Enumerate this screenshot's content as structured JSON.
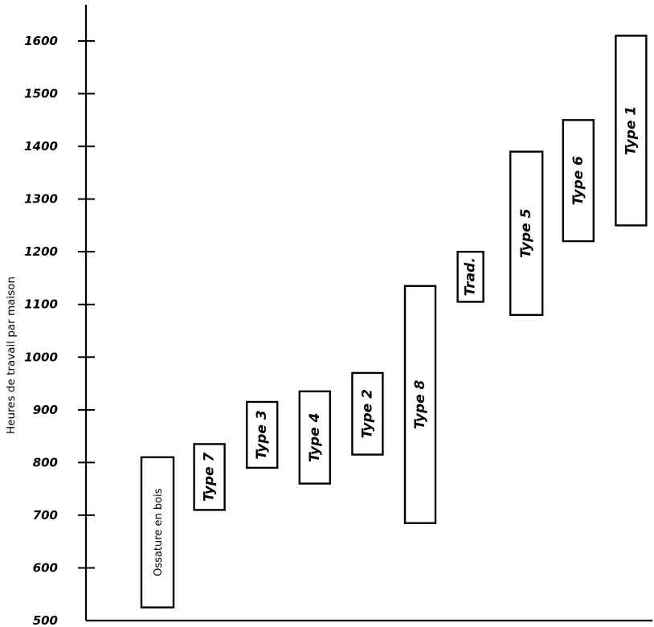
{
  "chart_data": {
    "type": "bar",
    "ylabel": "Heures de travail par maison",
    "ylim": [
      500,
      1600
    ],
    "yticks": [
      500,
      600,
      700,
      800,
      900,
      1000,
      1100,
      1200,
      1300,
      1400,
      1500,
      1600
    ],
    "grid": false,
    "series": [
      {
        "name": "",
        "ranges": [
          {
            "label": "Ossature en bois",
            "min": 525,
            "max": 810
          },
          {
            "label": "Type 7",
            "min": 710,
            "max": 835
          },
          {
            "label": "Type 3",
            "min": 790,
            "max": 915
          },
          {
            "label": "Type 4",
            "min": 760,
            "max": 935
          },
          {
            "label": "Type 2",
            "min": 815,
            "max": 970
          },
          {
            "label": "Type 8",
            "min": 685,
            "max": 1135
          },
          {
            "label": "Trad.",
            "min": 1105,
            "max": 1200
          },
          {
            "label": "Type 5",
            "min": 1080,
            "max": 1390
          },
          {
            "label": "Type 6",
            "min": 1220,
            "max": 1450
          },
          {
            "label": "Type 1",
            "min": 1250,
            "max": 1610
          }
        ]
      }
    ]
  }
}
